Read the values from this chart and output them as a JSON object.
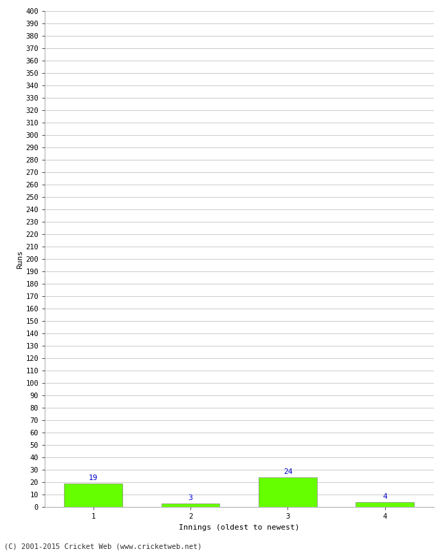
{
  "xlabel": "Innings (oldest to newest)",
  "ylabel": "Runs",
  "categories": [
    1,
    2,
    3,
    4
  ],
  "values": [
    19,
    3,
    24,
    4
  ],
  "bar_color": "#66ff00",
  "bar_edge_color": "#888888",
  "value_label_color": "#0000cc",
  "ylim": [
    0,
    400
  ],
  "ytick_step": 10,
  "footer": "(C) 2001-2015 Cricket Web (www.cricketweb.net)",
  "background_color": "#ffffff",
  "grid_color": "#cccccc",
  "tick_label_fontsize": 7.5,
  "axis_label_fontsize": 8,
  "value_label_fontsize": 8
}
